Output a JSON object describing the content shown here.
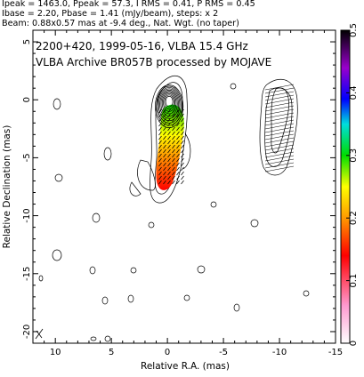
{
  "header": {
    "line1": "Ipeak = 1463.0, Ppeak = 57.3, I RMS = 0.41, P RMS = 0.45",
    "line2": "Ibase = 2.20, Pbase = 1.41 (mJy/beam), steps: x 2",
    "line3": "Beam: 0.88x0.57 mas at -9.4 deg., Nat. Wgt. (no taper)"
  },
  "chart_data": {
    "type": "contour",
    "annotations": [
      "2200+420, 1999-05-16, VLBA 15.4 GHz",
      "VLBA Archive BR057B processed by MOJAVE"
    ],
    "xlabel": "Relative R.A. (mas)",
    "ylabel": "Relative Declination (mas)",
    "xlim": [
      12,
      -15
    ],
    "ylim": [
      -21,
      6
    ],
    "x_ticks": [
      10,
      5,
      0,
      -5,
      -10,
      -15
    ],
    "y_ticks": [
      5,
      0,
      -5,
      -10,
      -15,
      -20
    ],
    "colorbar": {
      "min": 0,
      "max": 0.5,
      "ticks": [
        "0",
        "0.1",
        "0.2",
        "0.3",
        "0.4",
        "0.5"
      ],
      "colors": [
        "#ffffff",
        "#ff9ad0",
        "#ff0000",
        "#ff9900",
        "#ffff00",
        "#00dd00",
        "#00dddd",
        "#0000ff",
        "#9900cc",
        "#000000"
      ]
    },
    "panels": {
      "total_intensity_center": [
        0,
        0
      ],
      "polarization_center": [
        -10,
        0
      ]
    },
    "contour_levels_mjy": [
      2.2,
      4.4,
      8.8,
      17.6,
      35.2,
      70.4,
      140.8,
      281.6,
      563.2,
      1126.4
    ]
  }
}
